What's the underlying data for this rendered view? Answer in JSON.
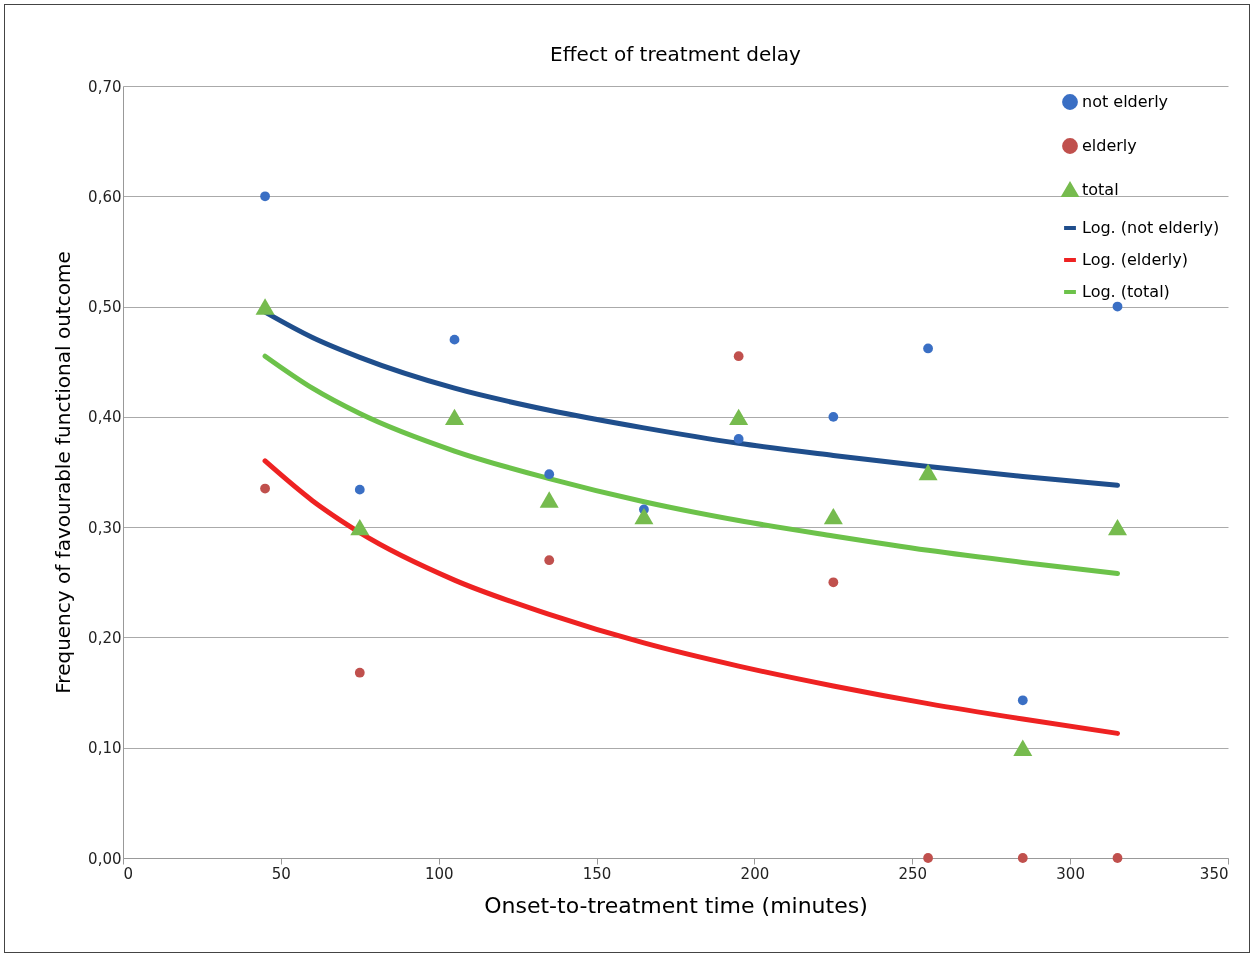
{
  "chart_data": {
    "type": "scatter",
    "title": "Effect of treatment delay",
    "xlabel": "Onset-to-treatment time (minutes)",
    "ylabel": "Frequency of favourable functional outcome",
    "xlim": [
      0,
      350
    ],
    "xticks": [
      0,
      50,
      100,
      150,
      200,
      250,
      300,
      350
    ],
    "ylim": [
      0,
      0.7
    ],
    "yticks": [
      {
        "value": 0,
        "label": "0,00"
      },
      {
        "value": 0.1,
        "label": "0,10"
      },
      {
        "value": 0.2,
        "label": "0,20"
      },
      {
        "value": 0.3,
        "label": "0,30"
      },
      {
        "value": 0.4,
        "label": "0,40"
      },
      {
        "value": 0.5,
        "label": "0,50"
      },
      {
        "value": 0.6,
        "label": "0,60"
      },
      {
        "value": 0.7,
        "label": "0,70"
      }
    ],
    "grid": "y",
    "legend": "top right",
    "series": [
      {
        "name": "not elderly",
        "type": "scatter",
        "marker": "circle",
        "color": "#3a6fc4",
        "x": [
          45,
          75,
          105,
          135,
          165,
          195,
          225,
          255,
          285,
          315
        ],
        "values": [
          0.6,
          0.334,
          0.47,
          0.348,
          0.316,
          0.38,
          0.4,
          0.462,
          0.143,
          0.5
        ]
      },
      {
        "name": "elderly",
        "type": "scatter",
        "marker": "circle",
        "color": "#c0504d",
        "x": [
          45,
          75,
          105,
          135,
          165,
          195,
          225,
          255,
          285,
          315
        ],
        "values": [
          0.335,
          0.168,
          null,
          0.27,
          null,
          0.455,
          0.25,
          0,
          0,
          0
        ]
      },
      {
        "name": "total",
        "type": "scatter",
        "marker": "triangle",
        "color": "#76bb4e",
        "x": [
          45,
          75,
          105,
          135,
          165,
          195,
          225,
          255,
          285,
          315
        ],
        "values": [
          0.5,
          0.3,
          0.4,
          0.325,
          0.31,
          0.4,
          0.31,
          0.35,
          0.1,
          0.3
        ]
      },
      {
        "name": "Log. (not elderly)",
        "type": "line",
        "marker": "none",
        "color": "#1f4e8c",
        "x": [
          45,
          60,
          75,
          105,
          135,
          165,
          195,
          225,
          255,
          285,
          315
        ],
        "values": [
          0.495,
          0.472,
          0.454,
          0.426,
          0.406,
          0.39,
          0.376,
          0.365,
          0.355,
          0.346,
          0.338
        ]
      },
      {
        "name": "Log. (elderly)",
        "type": "line",
        "marker": "none",
        "color": "#ee2222",
        "x": [
          45,
          60,
          75,
          105,
          135,
          165,
          195,
          225,
          255,
          285,
          315
        ],
        "values": [
          0.36,
          0.324,
          0.295,
          0.252,
          0.221,
          0.195,
          0.174,
          0.156,
          0.14,
          0.126,
          0.113
        ]
      },
      {
        "name": "Log. (total)",
        "type": "line",
        "marker": "none",
        "color": "#6cc24a",
        "x": [
          45,
          60,
          75,
          105,
          135,
          165,
          195,
          225,
          255,
          285,
          315
        ],
        "values": [
          0.455,
          0.426,
          0.403,
          0.369,
          0.344,
          0.323,
          0.306,
          0.292,
          0.279,
          0.268,
          0.258
        ]
      }
    ]
  }
}
